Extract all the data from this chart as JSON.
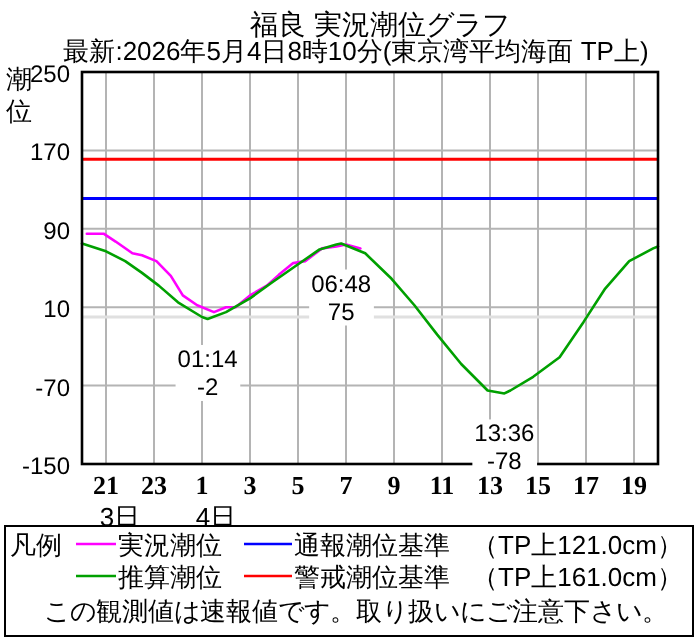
{
  "chart_data": {
    "type": "line",
    "title": "福良 実況潮位グラフ",
    "subtitle": "最新:2026年5月4日8時10分(東京湾平均海面 TP上)",
    "ylabel": "潮位",
    "legend_title": "凡例",
    "xlim": [
      "2026-05-03T20:00",
      "2026-05-04T20:00"
    ],
    "xticks": [
      {
        "value": "2026-05-03T21:00",
        "label": "21"
      },
      {
        "value": "2026-05-03T23:00",
        "label": "23"
      },
      {
        "value": "2026-05-04T01:00",
        "label": "1"
      },
      {
        "value": "2026-05-04T03:00",
        "label": "3"
      },
      {
        "value": "2026-05-04T05:00",
        "label": "5"
      },
      {
        "value": "2026-05-04T07:00",
        "label": "7"
      },
      {
        "value": "2026-05-04T09:00",
        "label": "9"
      },
      {
        "value": "2026-05-04T11:00",
        "label": "11"
      },
      {
        "value": "2026-05-04T13:00",
        "label": "13"
      },
      {
        "value": "2026-05-04T15:00",
        "label": "15"
      },
      {
        "value": "2026-05-04T17:00",
        "label": "17"
      },
      {
        "value": "2026-05-04T19:00",
        "label": "19"
      }
    ],
    "ylim": [
      -150,
      250
    ],
    "yticks": [
      -150,
      -70,
      10,
      90,
      170,
      250
    ],
    "grid": true,
    "legend": "bottom",
    "series": [
      {
        "name": "実況潮位",
        "color": "#ff00ff",
        "x": [
          "2026-05-03T20:12",
          "2026-05-03T20:54",
          "2026-05-03T21:24",
          "2026-05-03T22:06",
          "2026-05-03T22:30",
          "2026-05-03T23:06",
          "2026-05-03T23:42",
          "2026-05-04T00:12",
          "2026-05-04T00:48",
          "2026-05-04T01:30",
          "2026-05-04T02:00",
          "2026-05-04T02:24",
          "2026-05-04T03:00",
          "2026-05-04T03:42",
          "2026-05-04T04:12",
          "2026-05-04T04:48",
          "2026-05-04T05:18",
          "2026-05-04T06:00",
          "2026-05-04T06:36",
          "2026-05-04T07:00",
          "2026-05-04T07:36"
        ],
        "values": [
          85,
          85,
          77,
          65,
          63,
          57,
          42,
          22,
          12,
          5,
          10,
          10,
          22,
          32,
          43,
          55,
          57,
          70,
          72,
          74,
          70
        ]
      },
      {
        "name": "推算潮位",
        "color": "#00a000",
        "x": [
          "2026-05-03T20:00",
          "2026-05-03T21:00",
          "2026-05-03T21:48",
          "2026-05-03T22:30",
          "2026-05-03T23:12",
          "2026-05-04T00:00",
          "2026-05-04T01:00",
          "2026-05-04T01:14",
          "2026-05-04T02:00",
          "2026-05-04T03:00",
          "2026-05-04T03:54",
          "2026-05-04T04:54",
          "2026-05-04T05:54",
          "2026-05-04T06:36",
          "2026-05-04T06:48",
          "2026-05-04T07:48",
          "2026-05-04T08:54",
          "2026-05-04T09:51",
          "2026-05-04T10:48",
          "2026-05-04T11:48",
          "2026-05-04T12:54",
          "2026-05-04T13:36",
          "2026-05-04T13:51",
          "2026-05-04T14:48",
          "2026-05-04T15:54",
          "2026-05-04T16:54",
          "2026-05-04T17:48",
          "2026-05-04T18:48",
          "2026-05-04T19:48",
          "2026-05-04T20:00"
        ],
        "values": [
          75,
          67,
          57,
          45,
          32,
          15,
          0,
          -2,
          5,
          19,
          35,
          52,
          69,
          74,
          75,
          65,
          39,
          12,
          -18,
          -48,
          -75,
          -78,
          -75,
          -61,
          -41,
          -5,
          29,
          57,
          70,
          72
        ]
      }
    ],
    "ref_lines": [
      {
        "axis": "y",
        "value": 121,
        "label": "通報潮位基準 （TP上121.0cm）",
        "color": "#0000ff"
      },
      {
        "axis": "y",
        "value": 161,
        "label": "警戒潮位基準 （TP上161.0cm）",
        "color": "#ff0000"
      },
      {
        "axis": "y",
        "value": 0,
        "color": "#e0e0e0"
      }
    ],
    "annotations": [
      {
        "text": "01:14\n-2",
        "x": "2026-05-04T01:14",
        "y": -2
      },
      {
        "text": "06:48\n75",
        "x": "2026-05-04T06:48",
        "y": 75
      },
      {
        "text": "13:36\n-78",
        "x": "2026-05-04T13:36",
        "y": -78
      },
      "3日",
      "4日",
      "この観測値は速報値です。取り扱いにご注意下さい。"
    ]
  }
}
